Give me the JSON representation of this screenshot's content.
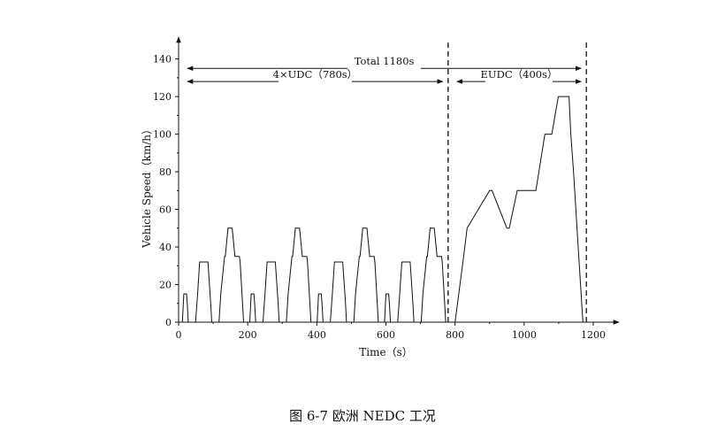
{
  "caption": "图 6-7 欧洲 NEDC 工况",
  "chart_data": {
    "type": "line",
    "xlabel": "Time（s）",
    "ylabel": "Vehicle Speed（km/h）",
    "xlim": [
      0,
      1200
    ],
    "ylim": [
      0,
      145
    ],
    "xticks": [
      0,
      200,
      400,
      600,
      800,
      1000,
      1200
    ],
    "yticks": [
      0,
      20,
      40,
      60,
      80,
      100,
      120,
      140
    ],
    "grid": false,
    "annotations": [
      {
        "text": "Total 1180s",
        "x_start": 0,
        "x_end": 1180,
        "y": 135
      },
      {
        "text": "4×UDC（780s）",
        "x_start": 0,
        "x_end": 780,
        "y": 128
      },
      {
        "text": "EUDC（400s）",
        "x_start": 780,
        "x_end": 1180,
        "y": 128
      }
    ],
    "vlines": [
      780,
      1180
    ],
    "series": [
      {
        "x": [
          0,
          11,
          15,
          23,
          25,
          28,
          49,
          55,
          61,
          85,
          93,
          96,
          117,
          122,
          133,
          135,
          143,
          155,
          163,
          176,
          178,
          185,
          188,
          195,
          195,
          206,
          210,
          218,
          220,
          223,
          244,
          250,
          256,
          280,
          288,
          291,
          312,
          317,
          328,
          330,
          338,
          350,
          358,
          371,
          373,
          380,
          383,
          390,
          390,
          401,
          405,
          413,
          415,
          418,
          439,
          445,
          451,
          475,
          483,
          486,
          507,
          512,
          523,
          525,
          533,
          545,
          553,
          566,
          568,
          575,
          578,
          585,
          585,
          596,
          600,
          608,
          610,
          613,
          634,
          640,
          646,
          670,
          678,
          681,
          702,
          707,
          718,
          720,
          728,
          740,
          748,
          761,
          763,
          770,
          773,
          780,
          800,
          825,
          835,
          900,
          907,
          950,
          957,
          980,
          1034,
          1060,
          1080,
          1099,
          1119,
          1130,
          1135,
          1143,
          1158,
          1170,
          1180
        ],
        "y": [
          0,
          0,
          15,
          15,
          10,
          0,
          0,
          15,
          32,
          32,
          10,
          0,
          0,
          15,
          35,
          35,
          50,
          50,
          35,
          35,
          32,
          10,
          0,
          0,
          0,
          0,
          15,
          15,
          10,
          0,
          0,
          15,
          32,
          32,
          10,
          0,
          0,
          15,
          35,
          35,
          50,
          50,
          35,
          35,
          32,
          10,
          0,
          0,
          0,
          0,
          15,
          15,
          10,
          0,
          0,
          15,
          32,
          32,
          10,
          0,
          0,
          15,
          35,
          35,
          50,
          50,
          35,
          35,
          32,
          10,
          0,
          0,
          0,
          0,
          15,
          15,
          10,
          0,
          0,
          15,
          32,
          32,
          10,
          0,
          0,
          15,
          35,
          35,
          50,
          50,
          35,
          35,
          32,
          10,
          0,
          0,
          0,
          35,
          50,
          70,
          70,
          50,
          50,
          70,
          70,
          100,
          100,
          120,
          120,
          120,
          100,
          80,
          35,
          0,
          0
        ]
      }
    ]
  }
}
